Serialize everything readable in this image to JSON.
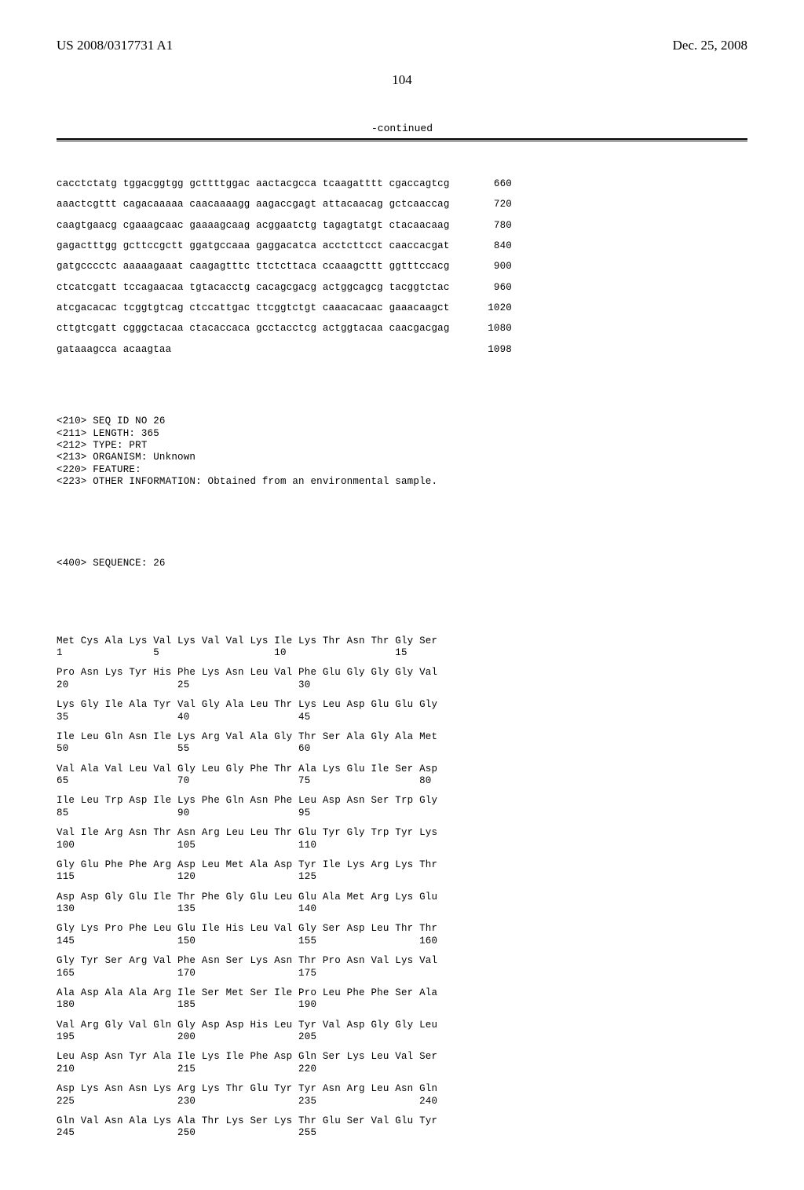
{
  "header": {
    "pub_number": "US 2008/0317731 A1",
    "pub_date": "Dec. 25, 2008"
  },
  "page_number": "104",
  "continued_label": "-continued",
  "nucleotide": {
    "lines": [
      {
        "seq": "cacctctatg tggacggtgg gcttttggac aactacgcca tcaagatttt cgaccagtcg",
        "pos": "660"
      },
      {
        "seq": "aaactcgttt cagacaaaaa caacaaaagg aagaccgagt attacaacag gctcaaccag",
        "pos": "720"
      },
      {
        "seq": "caagtgaacg cgaaagcaac gaaaagcaag acggaatctg tagagtatgt ctacaacaag",
        "pos": "780"
      },
      {
        "seq": "gagactttgg gcttccgctt ggatgccaaa gaggacatca acctcttcct caaccacgat",
        "pos": "840"
      },
      {
        "seq": "gatgcccctc aaaaagaaat caagagtttc ttctcttaca ccaaagcttt ggtttccacg",
        "pos": "900"
      },
      {
        "seq": "ctcatcgatt tccagaacaa tgtacacctg cacagcgacg actggcagcg tacggtctac",
        "pos": "960"
      },
      {
        "seq": "atcgacacac tcggtgtcag ctccattgac ttcggtctgt caaacacaac gaaacaagct",
        "pos": "1020"
      },
      {
        "seq": "cttgtcgatt cgggctacaa ctacaccaca gcctacctcg actggtacaa caacgacgag",
        "pos": "1080"
      },
      {
        "seq": "gataaagcca acaagtaa",
        "pos": "1098"
      }
    ]
  },
  "meta": [
    "<210> SEQ ID NO 26",
    "<211> LENGTH: 365",
    "<212> TYPE: PRT",
    "<213> ORGANISM: Unknown",
    "<220> FEATURE:",
    "<223> OTHER INFORMATION: Obtained from an environmental sample."
  ],
  "sequence_tag": "<400> SEQUENCE: 26",
  "protein": [
    {
      "aa": "Met Cys Ala Lys Val Lys Val Val Lys Ile Lys Thr Asn Thr Gly Ser",
      "nums": "1               5                   10                  15"
    },
    {
      "aa": "Pro Asn Lys Tyr His Phe Lys Asn Leu Val Phe Glu Gly Gly Gly Val",
      "nums": "20                  25                  30"
    },
    {
      "aa": "Lys Gly Ile Ala Tyr Val Gly Ala Leu Thr Lys Leu Asp Glu Glu Gly",
      "nums": "35                  40                  45"
    },
    {
      "aa": "Ile Leu Gln Asn Ile Lys Arg Val Ala Gly Thr Ser Ala Gly Ala Met",
      "nums": "50                  55                  60"
    },
    {
      "aa": "Val Ala Val Leu Val Gly Leu Gly Phe Thr Ala Lys Glu Ile Ser Asp",
      "nums": "65                  70                  75                  80"
    },
    {
      "aa": "Ile Leu Trp Asp Ile Lys Phe Gln Asn Phe Leu Asp Asn Ser Trp Gly",
      "nums": "85                  90                  95"
    },
    {
      "aa": "Val Ile Arg Asn Thr Asn Arg Leu Leu Thr Glu Tyr Gly Trp Tyr Lys",
      "nums": "100                 105                 110"
    },
    {
      "aa": "Gly Glu Phe Phe Arg Asp Leu Met Ala Asp Tyr Ile Lys Arg Lys Thr",
      "nums": "115                 120                 125"
    },
    {
      "aa": "Asp Asp Gly Glu Ile Thr Phe Gly Glu Leu Glu Ala Met Arg Lys Glu",
      "nums": "130                 135                 140"
    },
    {
      "aa": "Gly Lys Pro Phe Leu Glu Ile His Leu Val Gly Ser Asp Leu Thr Thr",
      "nums": "145                 150                 155                 160"
    },
    {
      "aa": "Gly Tyr Ser Arg Val Phe Asn Ser Lys Asn Thr Pro Asn Val Lys Val",
      "nums": "165                 170                 175"
    },
    {
      "aa": "Ala Asp Ala Ala Arg Ile Ser Met Ser Ile Pro Leu Phe Phe Ser Ala",
      "nums": "180                 185                 190"
    },
    {
      "aa": "Val Arg Gly Val Gln Gly Asp Asp His Leu Tyr Val Asp Gly Gly Leu",
      "nums": "195                 200                 205"
    },
    {
      "aa": "Leu Asp Asn Tyr Ala Ile Lys Ile Phe Asp Gln Ser Lys Leu Val Ser",
      "nums": "210                 215                 220"
    },
    {
      "aa": "Asp Lys Asn Asn Lys Arg Lys Thr Glu Tyr Tyr Asn Arg Leu Asn Gln",
      "nums": "225                 230                 235                 240"
    },
    {
      "aa": "Gln Val Asn Ala Lys Ala Thr Lys Ser Lys Thr Glu Ser Val Glu Tyr",
      "nums": "245                 250                 255"
    }
  ]
}
